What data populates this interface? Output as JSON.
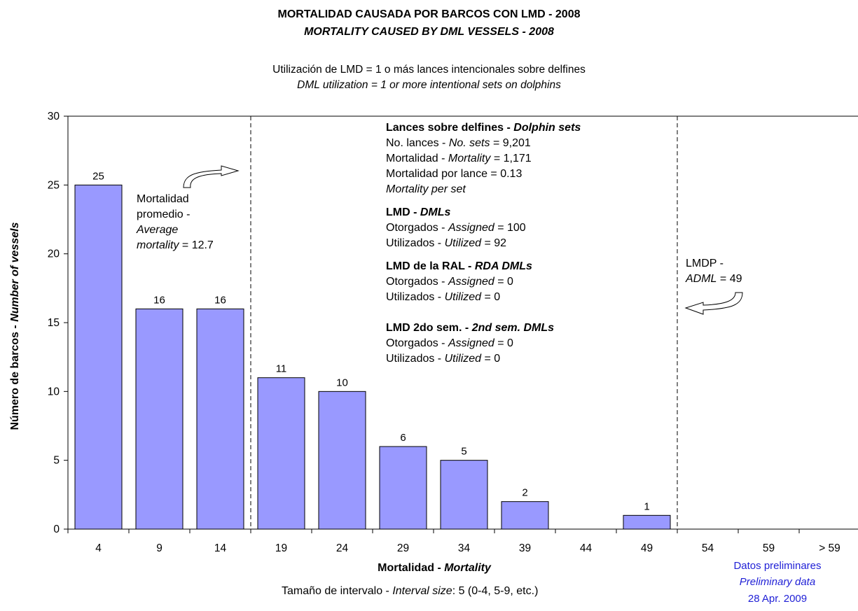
{
  "header": {
    "title_es": "MORTALIDAD CAUSADA POR BARCOS CON LMD - 2008",
    "title_en": "MORTALITY CAUSED BY DML VESSELS - 2008",
    "subtitle_es": "Utilización de LMD = 1 o más lances intencionales sobre delfines",
    "subtitle_en": "DML utilization = 1 or more intentional sets on dolphins"
  },
  "axes": {
    "ylabel_es": "Número de barcos - ",
    "ylabel_en": "Number of vessels",
    "xlabel_es": "Mortalidad - ",
    "xlabel_en": "Mortality",
    "interval_es": "Tamaño de intervalo - ",
    "interval_en": "Interval size",
    "interval_value": ": 5 (0-4, 5-9, etc.)"
  },
  "avg_box": {
    "line1": "Mortalidad",
    "line2": "promedio -",
    "line3": "Average",
    "line4_i": "mortality",
    "line4_v": " = 12.7"
  },
  "stats": {
    "dolphin_head_es": "Lances sobre delfines - ",
    "dolphin_head_en": "Dolphin sets",
    "sets_es": "No. lances - ",
    "sets_en": "No. sets",
    "sets_v": " = 9,201",
    "mort_es": "Mortalidad - ",
    "mort_en": "Mortality",
    "mort_v": " = 1,171",
    "mps_es": "Mortalidad por lance = 0.13",
    "mps_en": "Mortality per set",
    "dml_head_es": "LMD - ",
    "dml_head_en": "DMLs",
    "dml_assigned_es": "Otorgados - ",
    "dml_assigned_en": "Assigned",
    "dml_assigned_v": " = 100",
    "dml_utilized_es": "Utilizados - ",
    "dml_utilized_en": "Utilized",
    "dml_utilized_v": " = 92",
    "rda_head_es": "LMD de la RAL - ",
    "rda_head_en": "RDA DMLs",
    "rda_assigned_es": "Otorgados - ",
    "rda_assigned_en": "Assigned",
    "rda_assigned_v": " = 0",
    "rda_utilized_es": "Utilizados - ",
    "rda_utilized_en": "Utilized",
    "rda_utilized_v": " = 0",
    "sem_head_es": "LMD 2do sem. - ",
    "sem_head_en": "2nd sem. DMLs",
    "sem_assigned_es": "Otorgados - ",
    "sem_assigned_en": "Assigned",
    "sem_assigned_v": " = 0",
    "sem_utilized_es": "Utilizados - ",
    "sem_utilized_en": "Utilized",
    "sem_utilized_v": " = 0"
  },
  "admL": {
    "line1": "LMDP -",
    "line2_i": "ADML",
    "line2_v": " = 49"
  },
  "footer": {
    "line1": "Datos preliminares",
    "line2": "Preliminary data",
    "line3": "28 Apr. 2009"
  },
  "colors": {
    "bar_fill": "#9999ff",
    "footer_text": "#1f1fd6"
  },
  "chart_data": {
    "type": "bar",
    "categories": [
      "4",
      "9",
      "14",
      "19",
      "24",
      "29",
      "34",
      "39",
      "44",
      "49",
      "54",
      "59",
      "> 59"
    ],
    "values": [
      25,
      16,
      16,
      11,
      10,
      6,
      5,
      2,
      0,
      1,
      0,
      0,
      0
    ],
    "data_labels": [
      "25",
      "16",
      "16",
      "11",
      "10",
      "6",
      "5",
      "2",
      "",
      "1",
      "",
      "",
      ""
    ],
    "ylim": [
      0,
      30
    ],
    "yticks": [
      0,
      5,
      10,
      15,
      20,
      25,
      30
    ],
    "grid": false,
    "average_mortality": 12.7,
    "adml": 49
  }
}
